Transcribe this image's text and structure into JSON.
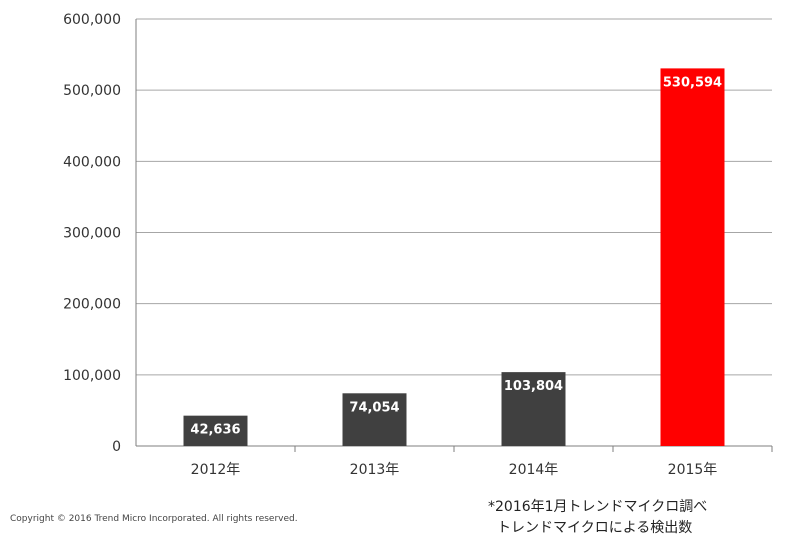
{
  "chart_data": {
    "type": "bar",
    "categories": [
      "2012年",
      "2013年",
      "2014年",
      "2015年"
    ],
    "values": [
      42636,
      74054,
      103804,
      530594
    ],
    "value_labels": [
      "42,636",
      "74,054",
      "103,804",
      "530,594"
    ],
    "y_ticks": [
      0,
      100000,
      200000,
      300000,
      400000,
      500000,
      600000
    ],
    "y_tick_labels": [
      "0",
      "100,000",
      "200,000",
      "300,000",
      "400,000",
      "500,000",
      "600,000"
    ],
    "ylim": [
      0,
      600000
    ],
    "grid": true,
    "colors": [
      "#404040",
      "#404040",
      "#404040",
      "#ff0000"
    ],
    "grid_color": "#a6a6a6",
    "axis_color": "#7f7f7f"
  },
  "notes": {
    "line1": "*2016年1月トレンドマイクロ調べ",
    "line2": "トレンドマイクロによる検出数"
  },
  "copyright": "Copyright © 2016 Trend Micro Incorporated. All rights reserved."
}
